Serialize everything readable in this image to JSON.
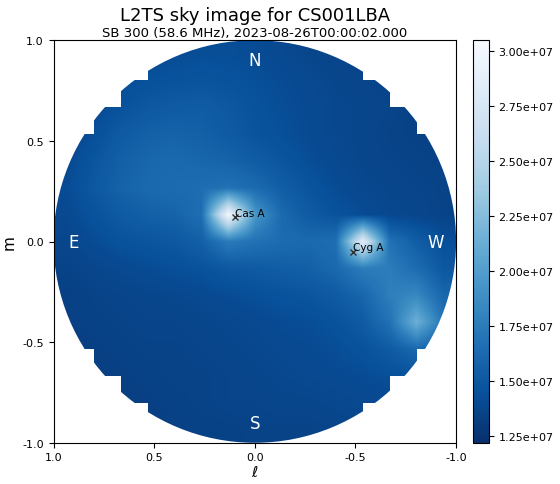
{
  "chart_data": {
    "type": "heatmap",
    "title": "L2TS sky image for CS001LBA",
    "subtitle": "SB 300 (58.6 MHz), 2023-08-26T00:00:02.000",
    "x_label": "ℓ",
    "y_label": "m",
    "x": [
      0.933,
      0.8,
      0.667,
      0.533,
      0.4,
      0.267,
      0.133,
      0,
      -0.133,
      -0.267,
      -0.4,
      -0.533,
      -0.667,
      -0.8,
      -0.933
    ],
    "y": [
      0.933,
      0.8,
      0.667,
      0.533,
      0.4,
      0.267,
      0.133,
      0,
      -0.133,
      -0.267,
      -0.4,
      -0.533,
      -0.667,
      -0.8,
      -0.933
    ],
    "values": [
      [
        null,
        null,
        null,
        14000000.0,
        14200000.0,
        14300000.0,
        14300000.0,
        14200000.0,
        14000000.0,
        13800000.0,
        13700000.0,
        13600000.0,
        null,
        null,
        null
      ],
      [
        null,
        null,
        14200000.0,
        14500000.0,
        14600000.0,
        14700000.0,
        14600000.0,
        14400000.0,
        14200000.0,
        14000000.0,
        13800000.0,
        13700000.0,
        13600000.0,
        null,
        null
      ],
      [
        null,
        14000000.0,
        14600000.0,
        15000000.0,
        15200000.0,
        15300000.0,
        15000000.0,
        14600000.0,
        14300000.0,
        14100000.0,
        13900000.0,
        13800000.0,
        13700000.0,
        13500000.0,
        null
      ],
      [
        13800000.0,
        14400000.0,
        15200000.0,
        15600000.0,
        15800000.0,
        15600000.0,
        15200000.0,
        14700000.0,
        14400000.0,
        14100000.0,
        13900000.0,
        13800000.0,
        13600000.0,
        13500000.0,
        13400000.0
      ],
      [
        14000000.0,
        14800000.0,
        15600000.0,
        16000000.0,
        16200000.0,
        16000000.0,
        15800000.0,
        15300000.0,
        14800000.0,
        14300000.0,
        14000000.0,
        13800000.0,
        13700000.0,
        13600000.0,
        13500000.0
      ],
      [
        14200000.0,
        15000000.0,
        15800000.0,
        16200000.0,
        16400000.0,
        16500000.0,
        16800000.0,
        16300000.0,
        15400000.0,
        14700000.0,
        14200000.0,
        13900000.0,
        13800000.0,
        13700000.0,
        13600000.0
      ],
      [
        14000000.0,
        14600000.0,
        15200000.0,
        15600000.0,
        15800000.0,
        16600000.0,
        30000000.0,
        19500000.0,
        16200000.0,
        15200000.0,
        14600000.0,
        14200000.0,
        13900000.0,
        13800000.0,
        13600000.0
      ],
      [
        13800000.0,
        14200000.0,
        14600000.0,
        14800000.0,
        15000000.0,
        15600000.0,
        17500000.0,
        16800000.0,
        16400000.0,
        16200000.0,
        16600000.0,
        28500000.0,
        16800000.0,
        15400000.0,
        14400000.0
      ],
      [
        13600000.0,
        13800000.0,
        14000000.0,
        14200000.0,
        14400000.0,
        14600000.0,
        15000000.0,
        15200000.0,
        15400000.0,
        15600000.0,
        16200000.0,
        17600000.0,
        17600000.0,
        16400000.0,
        15000000.0
      ],
      [
        13400000.0,
        13600000.0,
        13700000.0,
        13800000.0,
        13900000.0,
        14000000.0,
        14200000.0,
        14400000.0,
        14600000.0,
        14800000.0,
        15200000.0,
        16000000.0,
        17800000.0,
        18400000.0,
        16000000.0
      ],
      [
        13400000.0,
        13500000.0,
        13600000.0,
        13700000.0,
        13700000.0,
        13800000.0,
        13900000.0,
        14000000.0,
        14200000.0,
        14300000.0,
        14600000.0,
        15200000.0,
        16800000.0,
        21500000.0,
        17000000.0
      ],
      [
        13300000.0,
        13400000.0,
        13500000.0,
        13600000.0,
        13600000.0,
        13700000.0,
        13800000.0,
        13900000.0,
        14000000.0,
        14100000.0,
        14300000.0,
        14600000.0,
        15200000.0,
        16200000.0,
        15400000.0
      ],
      [
        null,
        13300000.0,
        13400000.0,
        13500000.0,
        13600000.0,
        13600000.0,
        13700000.0,
        13800000.0,
        13900000.0,
        14000000.0,
        14100000.0,
        14200000.0,
        14400000.0,
        14600000.0,
        null
      ],
      [
        null,
        null,
        13300000.0,
        13400000.0,
        13500000.0,
        13600000.0,
        13700000.0,
        13700000.0,
        13800000.0,
        13800000.0,
        13900000.0,
        14000000.0,
        14000000.0,
        null,
        null
      ],
      [
        null,
        null,
        null,
        13300000.0,
        13400000.0,
        13500000.0,
        13500000.0,
        13600000.0,
        13600000.0,
        13600000.0,
        13700000.0,
        13700000.0,
        null,
        null,
        null
      ]
    ],
    "xlim": [
      1,
      -1
    ],
    "ylim": [
      -1,
      1
    ],
    "xticks": [
      {
        "value": 1,
        "label": "1.0"
      },
      0.5,
      {
        "value": 0,
        "label": "0.0"
      },
      -0.5,
      {
        "value": -1,
        "label": "-1.0"
      }
    ],
    "yticks": [
      {
        "value": -1,
        "label": "-1.0"
      },
      -0.5,
      {
        "value": 0,
        "label": "0.0"
      },
      0.5,
      {
        "value": 1,
        "label": "1.0"
      }
    ],
    "colorbar": {
      "range": [
        12200000.0,
        30500000.0
      ],
      "ticks": [
        {
          "value": 12500000.0,
          "label": "1.25e+07"
        },
        {
          "value": 15000000.0,
          "label": "1.50e+07"
        },
        {
          "value": 17500000.0,
          "label": "1.75e+07"
        },
        {
          "value": 20000000.0,
          "label": "2.00e+07"
        },
        {
          "value": 22500000.0,
          "label": "2.25e+07"
        },
        {
          "value": 25000000.0,
          "label": "2.50e+07"
        },
        {
          "value": 27500000.0,
          "label": "2.75e+07"
        },
        {
          "value": 30000000.0,
          "label": "3.00e+07"
        }
      ]
    },
    "annotations": [
      {
        "text": "Cas A",
        "x": 0.1,
        "y": 0.12,
        "marker": "x"
      },
      {
        "text": "Cyg A",
        "x": -0.49,
        "y": -0.05,
        "marker": "x"
      }
    ],
    "compass_labels": [
      "N",
      "E",
      "S",
      "W"
    ]
  }
}
